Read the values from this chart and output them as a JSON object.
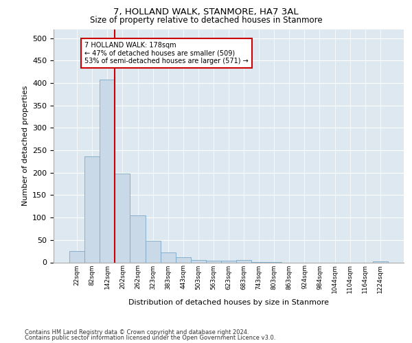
{
  "title": "7, HOLLAND WALK, STANMORE, HA7 3AL",
  "subtitle": "Size of property relative to detached houses in Stanmore",
  "xlabel": "Distribution of detached houses by size in Stanmore",
  "ylabel": "Number of detached properties",
  "bin_labels": [
    "22sqm",
    "82sqm",
    "142sqm",
    "202sqm",
    "262sqm",
    "323sqm",
    "383sqm",
    "443sqm",
    "503sqm",
    "563sqm",
    "623sqm",
    "683sqm",
    "743sqm",
    "803sqm",
    "863sqm",
    "924sqm",
    "984sqm",
    "1044sqm",
    "1104sqm",
    "1164sqm",
    "1224sqm"
  ],
  "bar_values": [
    25,
    237,
    407,
    198,
    105,
    48,
    22,
    11,
    6,
    4,
    4,
    5,
    1,
    1,
    0,
    0,
    0,
    0,
    0,
    0,
    3
  ],
  "bar_color": "#c9d9e8",
  "bar_edge_color": "#7aa8c8",
  "vline_x": 2.5,
  "vline_color": "#cc0000",
  "annotation_text": "7 HOLLAND WALK: 178sqm\n← 47% of detached houses are smaller (509)\n53% of semi-detached houses are larger (571) →",
  "annotation_box_color": "#ffffff",
  "annotation_box_edge": "#cc0000",
  "ylim": [
    0,
    520
  ],
  "yticks": [
    0,
    50,
    100,
    150,
    200,
    250,
    300,
    350,
    400,
    450,
    500
  ],
  "background_color": "#dde8f0",
  "footnote1": "Contains HM Land Registry data © Crown copyright and database right 2024.",
  "footnote2": "Contains public sector information licensed under the Open Government Licence v3.0."
}
